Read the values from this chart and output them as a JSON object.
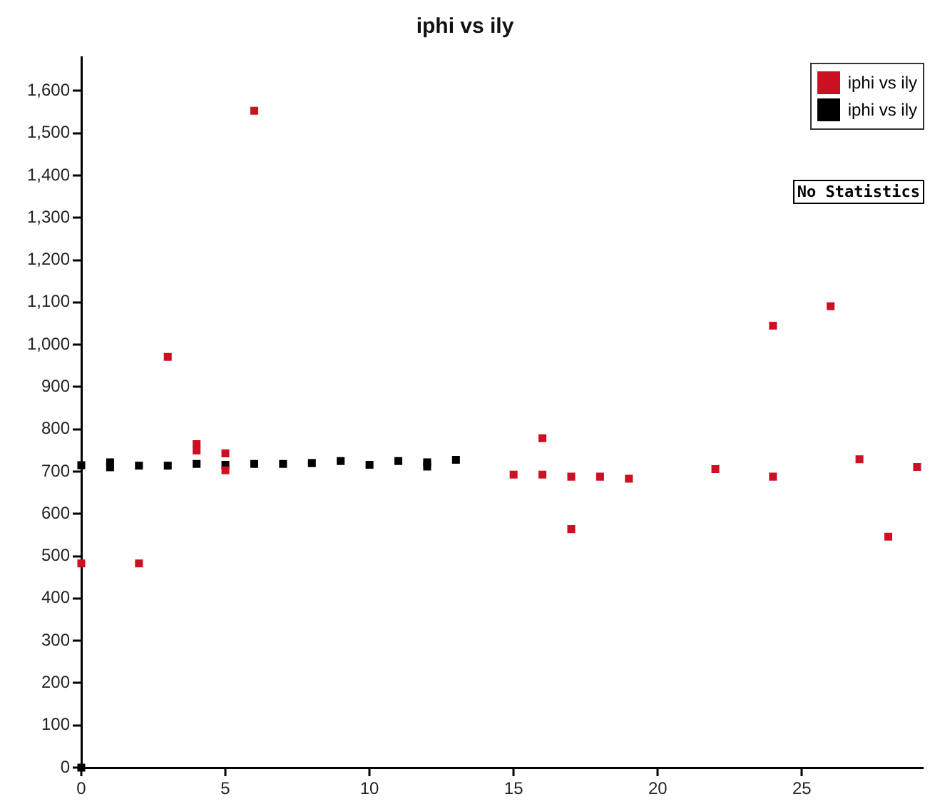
{
  "chart_data": {
    "type": "scatter",
    "title": "iphi vs ily",
    "legend": "top right",
    "marker": "square",
    "grid": false,
    "xlim": [
      0,
      29.2
    ],
    "xticks": [
      0,
      5,
      10,
      15,
      20,
      25
    ],
    "ylim": [
      0,
      1680
    ],
    "yticks": [
      0,
      100,
      200,
      300,
      400,
      500,
      600,
      700,
      800,
      900,
      {
        "value": 1000,
        "label": "1,000"
      },
      {
        "value": 1100,
        "label": "1,100"
      },
      {
        "value": 1200,
        "label": "1,200"
      },
      {
        "value": 1300,
        "label": "1,300"
      },
      {
        "value": 1400,
        "label": "1,400"
      },
      {
        "value": 1500,
        "label": "1,500"
      },
      {
        "value": 1600,
        "label": "1,600"
      }
    ],
    "annotations": [
      "No Statistics"
    ],
    "series": [
      {
        "name": "iphi vs ily",
        "color": "#cc1122",
        "x": [
          0,
          2,
          3,
          4,
          4,
          5,
          5,
          6,
          15,
          16,
          16,
          17,
          17,
          18,
          19,
          22,
          24,
          24,
          26,
          27,
          28,
          29
        ],
        "values": [
          483,
          483,
          971,
          765,
          750,
          743,
          703,
          1553,
          693,
          779,
          693,
          688,
          564,
          688,
          683,
          706,
          688,
          1045,
          1091,
          729,
          546,
          711
        ]
      },
      {
        "name": "iphi vs ily",
        "color": "#000000",
        "x": [
          0,
          0,
          1,
          1,
          2,
          3,
          4,
          5,
          6,
          7,
          8,
          9,
          10,
          11,
          12,
          12,
          13
        ],
        "values": [
          0,
          715,
          722,
          710,
          714,
          714,
          718,
          716,
          718,
          718,
          720,
          725,
          716,
          725,
          722,
          712,
          728
        ]
      }
    ]
  }
}
